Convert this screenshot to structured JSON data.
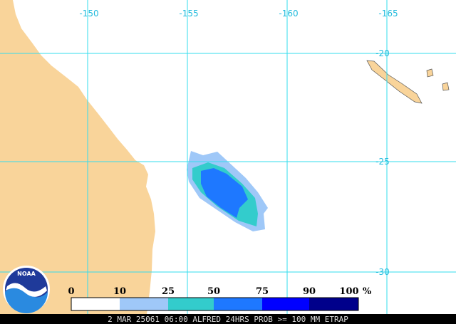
{
  "map": {
    "longitude_labels": [
      "-150",
      "-155",
      "-160",
      "-165"
    ],
    "latitude_labels": [
      "-20",
      "-25",
      "-30"
    ],
    "legend": {
      "labels": [
        0,
        10,
        25,
        50,
        75,
        90,
        100
      ],
      "unit": "%",
      "colors": [
        "#ffffff",
        "#9fc8f8",
        "#33cccc",
        "#1e78ff",
        "#0000ff",
        "#00008b"
      ]
    },
    "logo": "NOAA",
    "footer": "2 MAR 25061 06:00 ALFRED 24HRS PROB >= 100 MM ETRAP"
  }
}
